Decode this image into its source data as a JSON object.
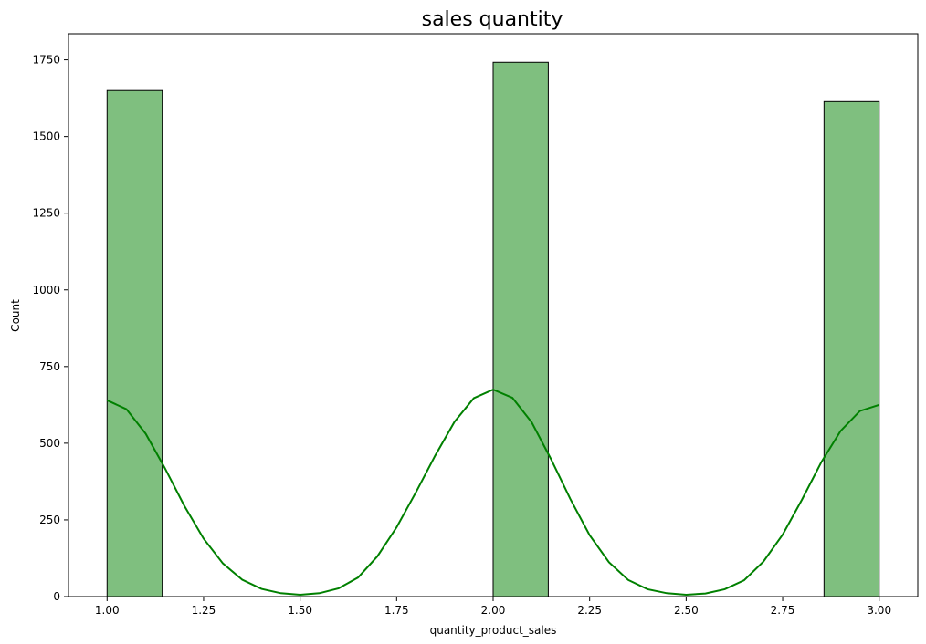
{
  "chart_data": {
    "type": "bar",
    "title": "sales quantity",
    "xlabel": "quantity_product_sales",
    "ylabel": "Count",
    "xlim": [
      0.9,
      3.1
    ],
    "ylim": [
      0,
      1835
    ],
    "xticks": [
      1.0,
      1.25,
      1.5,
      1.75,
      2.0,
      2.25,
      2.5,
      2.75,
      3.0
    ],
    "xtick_labels": [
      "1.00",
      "1.25",
      "1.50",
      "1.75",
      "2.00",
      "2.25",
      "2.50",
      "2.75",
      "3.00"
    ],
    "yticks": [
      0,
      250,
      500,
      750,
      1000,
      1250,
      1500,
      1750
    ],
    "ytick_labels": [
      "0",
      "250",
      "500",
      "750",
      "1000",
      "1250",
      "1500",
      "1750"
    ],
    "grid": false,
    "histogram": {
      "bins": [
        {
          "x_start": 1.0,
          "x_end": 1.1429,
          "count": 1650
        },
        {
          "x_start": 2.0,
          "x_end": 2.1429,
          "count": 1742
        },
        {
          "x_start": 2.8571,
          "x_end": 3.0,
          "count": 1614
        }
      ],
      "fill_color": "#7fbf7f",
      "edge_color": "#000000"
    },
    "kde": {
      "color": "#008000",
      "x": [
        1.0,
        1.05,
        1.1,
        1.15,
        1.2,
        1.25,
        1.3,
        1.35,
        1.4,
        1.45,
        1.5,
        1.55,
        1.6,
        1.65,
        1.7,
        1.75,
        1.8,
        1.85,
        1.9,
        1.95,
        2.0,
        2.05,
        2.1,
        2.15,
        2.2,
        2.25,
        2.3,
        2.35,
        2.4,
        2.45,
        2.5,
        2.55,
        2.6,
        2.65,
        2.7,
        2.75,
        2.8,
        2.85,
        2.9,
        2.95,
        3.0
      ],
      "y": [
        640,
        611,
        531,
        418,
        296,
        189,
        108,
        55,
        25,
        11,
        6,
        11,
        27,
        62,
        131,
        226,
        340,
        460,
        570,
        647,
        675,
        648,
        568,
        448,
        318,
        200,
        112,
        54,
        24,
        11,
        6,
        10,
        24,
        53,
        114,
        202,
        316,
        438,
        540,
        605,
        625
      ]
    }
  }
}
